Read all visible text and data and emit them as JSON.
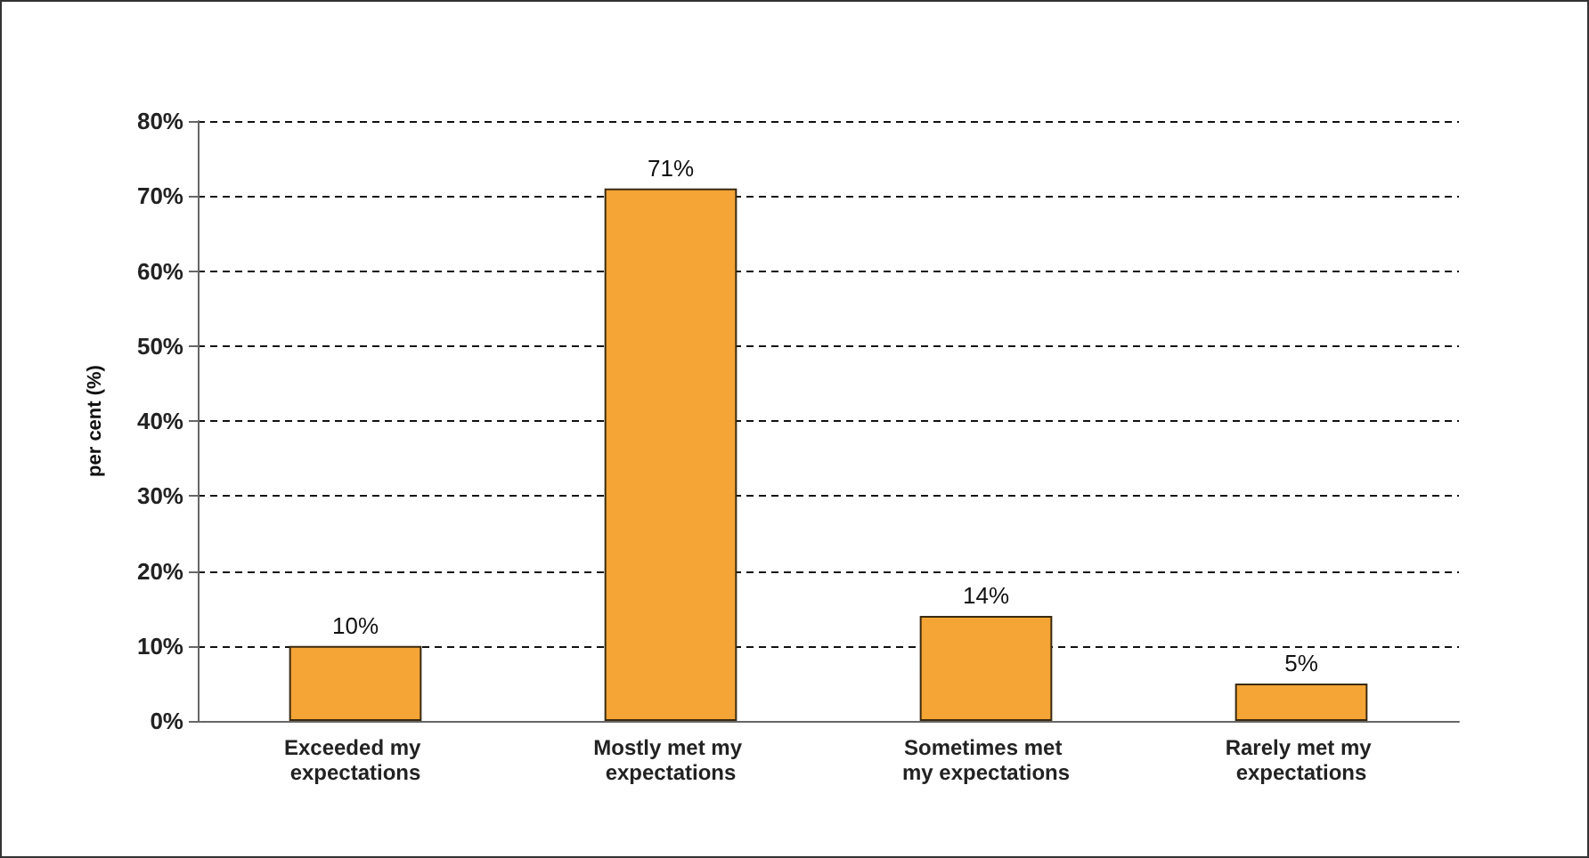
{
  "chart_data": {
    "type": "bar",
    "ylabel": "per cent (%)",
    "categories": [
      "Exceeded my expectations",
      "Mostly met my expectations",
      "Sometimes met my expectations",
      "Rarely met my expectations"
    ],
    "values": [
      10,
      71,
      14,
      5
    ],
    "value_labels": [
      "10%",
      "71%",
      "14%",
      "5%"
    ],
    "color": "#f4a535",
    "ylim": [
      0,
      80
    ],
    "yticks": [
      {
        "value": 0,
        "label": "0%"
      },
      {
        "value": 10,
        "label": "10%"
      },
      {
        "value": 20,
        "label": "20%"
      },
      {
        "value": 30,
        "label": "30%"
      },
      {
        "value": 40,
        "label": "40%"
      },
      {
        "value": 50,
        "label": "50%"
      },
      {
        "value": 60,
        "label": "60%"
      },
      {
        "value": 70,
        "label": "70%"
      },
      {
        "value": 80,
        "label": "80%"
      }
    ],
    "grid": "y"
  }
}
